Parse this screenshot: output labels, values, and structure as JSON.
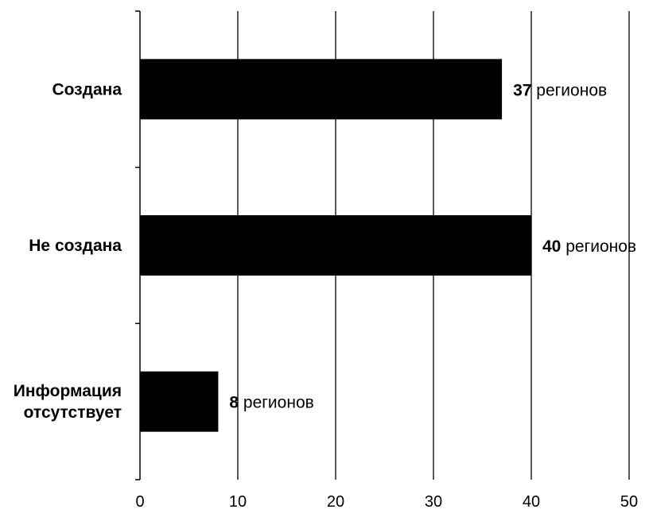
{
  "chart_data": {
    "type": "bar",
    "orientation": "horizontal",
    "title": "",
    "xlabel": "",
    "ylabel": "",
    "categories": [
      [
        "Создана"
      ],
      [
        "Не создана"
      ],
      [
        "Информация",
        "отсутствует"
      ]
    ],
    "values": [
      37,
      40,
      8
    ],
    "data_labels": [
      {
        "number": "37",
        "suffix": " регионов"
      },
      {
        "number": "40",
        "suffix": " регионов"
      },
      {
        "number": "8",
        "suffix": " регионов"
      }
    ],
    "xlim": [
      0,
      50
    ],
    "x_ticks": [
      0,
      10,
      20,
      30,
      40,
      50
    ],
    "x_tick_labels": [
      "0",
      "10",
      "20",
      "30",
      "40",
      "50"
    ],
    "grid": true,
    "legend": "none",
    "colors": {
      "bar": "#000000",
      "grid": "#000000",
      "background": "#ffffff",
      "text": "#000000"
    }
  }
}
